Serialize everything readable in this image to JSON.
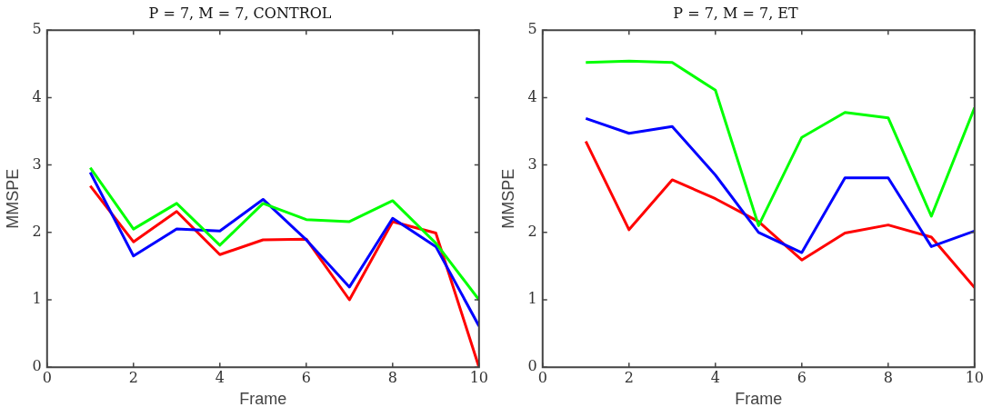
{
  "chart_data": [
    {
      "type": "line",
      "title": "P = 7, M = 7, CONTROL",
      "xlabel": "Frame",
      "ylabel": "MMSPE",
      "x": [
        1,
        2,
        3,
        4,
        5,
        6,
        7,
        8,
        9,
        10
      ],
      "xlim": [
        0,
        10
      ],
      "xticks": [
        0,
        2,
        4,
        6,
        8,
        10
      ],
      "ylim": [
        0,
        5
      ],
      "yticks": [
        0,
        1,
        2,
        3,
        4,
        5
      ],
      "grid": false,
      "legend": false,
      "marker": "none",
      "line_style": "solid",
      "series": [
        {
          "color": "#00ff00",
          "values": [
            2.96,
            2.05,
            2.43,
            1.81,
            2.43,
            2.19,
            2.16,
            2.47,
            1.84,
            1.0
          ]
        },
        {
          "color": "#0000ff",
          "values": [
            2.89,
            1.65,
            2.05,
            2.02,
            2.49,
            1.89,
            1.19,
            2.21,
            1.79,
            0.61
          ]
        },
        {
          "color": "#ff0000",
          "values": [
            2.69,
            1.86,
            2.31,
            1.67,
            1.89,
            1.9,
            1.0,
            2.16,
            1.99,
            0.0
          ]
        }
      ]
    },
    {
      "type": "line",
      "title": "P = 7, M = 7, ET",
      "xlabel": "Frame",
      "ylabel": "MMSPE",
      "x": [
        1,
        2,
        3,
        4,
        5,
        6,
        7,
        8,
        9,
        10
      ],
      "xlim": [
        0,
        10
      ],
      "xticks": [
        0,
        2,
        4,
        6,
        8,
        10
      ],
      "ylim": [
        0,
        5
      ],
      "yticks": [
        0,
        1,
        2,
        3,
        4,
        5
      ],
      "grid": false,
      "legend": false,
      "marker": "none",
      "line_style": "solid",
      "series": [
        {
          "color": "#00ff00",
          "values": [
            4.52,
            4.54,
            4.52,
            4.11,
            2.1,
            3.41,
            3.78,
            3.7,
            2.24,
            3.85
          ]
        },
        {
          "color": "#0000ff",
          "values": [
            3.69,
            3.47,
            3.57,
            2.85,
            2.0,
            1.7,
            2.81,
            2.81,
            1.79,
            2.02
          ]
        },
        {
          "color": "#ff0000",
          "values": [
            3.35,
            2.04,
            2.78,
            2.5,
            2.16,
            1.59,
            1.99,
            2.11,
            1.93,
            1.18
          ]
        }
      ]
    }
  ]
}
